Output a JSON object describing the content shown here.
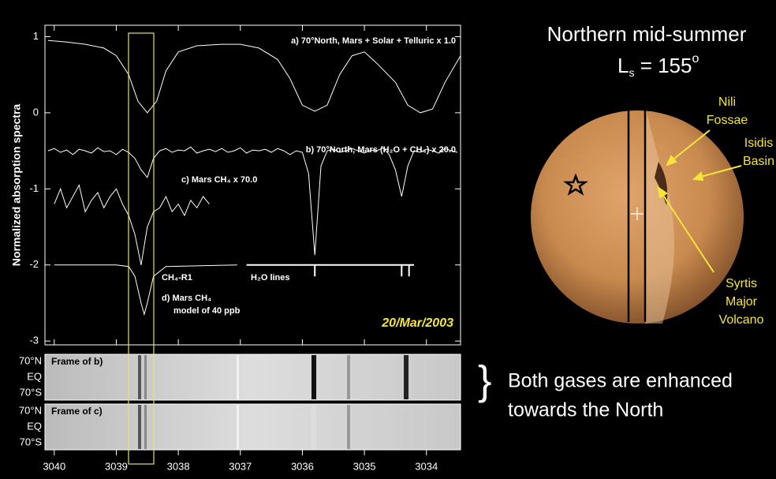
{
  "chart_data": {
    "type": "line",
    "ylabel": "Normalized absorption spectra",
    "xlim": [
      3040.15,
      3033.45
    ],
    "ylim": [
      -3.05,
      1.15
    ],
    "xticks": [
      3040,
      3039,
      3038,
      3037,
      3036,
      3035,
      3034
    ],
    "yticks": [
      1,
      0,
      -1,
      -2,
      -3
    ],
    "annotations": [
      "a) 70°North, Mars + Solar + Telluric x 1.0",
      "b) 70°North, Mars (H₂O + CH₄) x 20.0",
      "c) Mars CH₄ x 70.0",
      "CH₄-R1",
      "H₂O lines",
      "d) Mars CH₄",
      "model of 40 ppb",
      "20/Mar/2003"
    ],
    "series": [
      {
        "color": "#ffffff",
        "x": [
          3040.1,
          3039.8,
          3039.5,
          3039.2,
          3039.0,
          3038.8,
          3038.65,
          3038.5,
          3038.35,
          3038.2,
          3038.0,
          3037.7,
          3037.3,
          3037.0,
          3036.7,
          3036.4,
          3036.2,
          3036.0,
          3035.8,
          3035.6,
          3035.4,
          3035.2,
          3035.0,
          3034.8,
          3034.5,
          3034.3,
          3034.1,
          3033.9,
          3033.7,
          3033.45
        ],
        "values": [
          0.95,
          0.93,
          0.9,
          0.85,
          0.75,
          0.5,
          0.15,
          0.0,
          0.15,
          0.55,
          0.8,
          0.88,
          0.9,
          0.9,
          0.85,
          0.7,
          0.45,
          0.1,
          0.02,
          0.1,
          0.5,
          0.75,
          0.8,
          0.65,
          0.4,
          0.1,
          0.0,
          0.05,
          0.4,
          0.75
        ]
      },
      {
        "color": "#ffffff",
        "x": [
          3040.1,
          3040.0,
          3039.9,
          3039.8,
          3039.7,
          3039.6,
          3039.5,
          3039.4,
          3039.3,
          3039.2,
          3039.1,
          3039.0,
          3038.9,
          3038.8,
          3038.7,
          3038.6,
          3038.5,
          3038.4,
          3038.3,
          3038.2,
          3038.1,
          3038.0,
          3037.9,
          3037.8,
          3037.7,
          3037.6,
          3037.5,
          3037.4,
          3037.3,
          3037.2,
          3037.1,
          3037.0,
          3036.9,
          3036.8,
          3036.7,
          3036.6,
          3036.5,
          3036.4,
          3036.3,
          3036.2,
          3036.1,
          3036.0,
          3035.9,
          3035.8,
          3035.7,
          3035.6,
          3035.5,
          3035.4,
          3035.3,
          3035.2,
          3035.1,
          3035.0,
          3034.9,
          3034.8,
          3034.7,
          3034.6,
          3034.5,
          3034.4,
          3034.3,
          3034.2,
          3034.1,
          3034.0,
          3033.9,
          3033.8,
          3033.7,
          3033.6,
          3033.5
        ],
        "values": [
          -0.5,
          -0.47,
          -0.52,
          -0.49,
          -0.55,
          -0.48,
          -0.5,
          -0.53,
          -0.46,
          -0.51,
          -0.5,
          -0.55,
          -0.48,
          -0.52,
          -0.6,
          -0.75,
          -0.85,
          -0.6,
          -0.5,
          -0.47,
          -0.52,
          -0.49,
          -0.5,
          -0.45,
          -0.53,
          -0.5,
          -0.48,
          -0.51,
          -0.47,
          -0.52,
          -0.5,
          -0.46,
          -0.53,
          -0.49,
          -0.5,
          -0.48,
          -0.52,
          -0.47,
          -0.5,
          -0.55,
          -0.5,
          -0.52,
          -0.8,
          -1.87,
          -0.7,
          -0.5,
          -0.48,
          -0.52,
          -0.5,
          -0.47,
          -0.5,
          -0.53,
          -0.49,
          -0.5,
          -0.46,
          -0.55,
          -0.75,
          -1.1,
          -0.7,
          -0.5,
          -0.52,
          -0.48,
          -0.5,
          -0.53,
          -0.47,
          -0.5,
          -0.52
        ]
      },
      {
        "color": "#ffffff",
        "x": [
          3040.0,
          3039.9,
          3039.8,
          3039.7,
          3039.6,
          3039.5,
          3039.4,
          3039.3,
          3039.2,
          3039.1,
          3039.0,
          3038.9,
          3038.8,
          3038.7,
          3038.6,
          3038.5,
          3038.4,
          3038.3,
          3038.2,
          3038.1,
          3038.0,
          3037.9,
          3037.8,
          3037.7,
          3037.6,
          3037.5
        ],
        "values": [
          -1.2,
          -1.0,
          -1.25,
          -1.1,
          -0.95,
          -1.3,
          -1.15,
          -1.05,
          -1.25,
          -1.1,
          -1.0,
          -1.2,
          -1.35,
          -1.6,
          -2.0,
          -1.5,
          -1.3,
          -1.25,
          -1.1,
          -1.3,
          -1.2,
          -1.35,
          -1.15,
          -1.25,
          -1.1,
          -1.2
        ]
      },
      {
        "color": "#ffffff",
        "x": [
          3040.0,
          3039.0,
          3038.8,
          3038.7,
          3038.6,
          3038.55,
          3038.5,
          3038.4,
          3038.2,
          3037.05
        ],
        "values": [
          -2,
          -2,
          -2.02,
          -2.15,
          -2.5,
          -2.65,
          -2.5,
          -2.15,
          -2.02,
          -2
        ]
      },
      {
        "color": "#ffffff",
        "x": [
          3036.9,
          3035.8,
          3035.8,
          3035.8,
          3034.4,
          3034.4,
          3034.4,
          3034.28,
          3034.28,
          3034.28,
          3034.2
        ],
        "values": [
          -2,
          -2,
          -2.15,
          -2,
          -2,
          -2.15,
          -2,
          -2,
          -2.15,
          -2,
          -2
        ]
      }
    ]
  },
  "panels": {
    "frames": [
      "Frame of b)",
      "Frame of c)"
    ],
    "lat_labels": [
      "70°N",
      "EQ",
      "70°S"
    ]
  },
  "mars": {
    "title": "Northern mid-summer",
    "ls": {
      "symbol": "L",
      "sub": "s",
      "rest": " = 155",
      "sup": "o"
    },
    "features": [
      [
        "Nili",
        "Fossae"
      ],
      [
        "Isidis",
        "Basin"
      ],
      [
        "Syrtis",
        "Major",
        "Volcano"
      ]
    ]
  },
  "caption": {
    "brace": "}",
    "lines": [
      "Both gases are enhanced",
      "towards the North"
    ]
  }
}
